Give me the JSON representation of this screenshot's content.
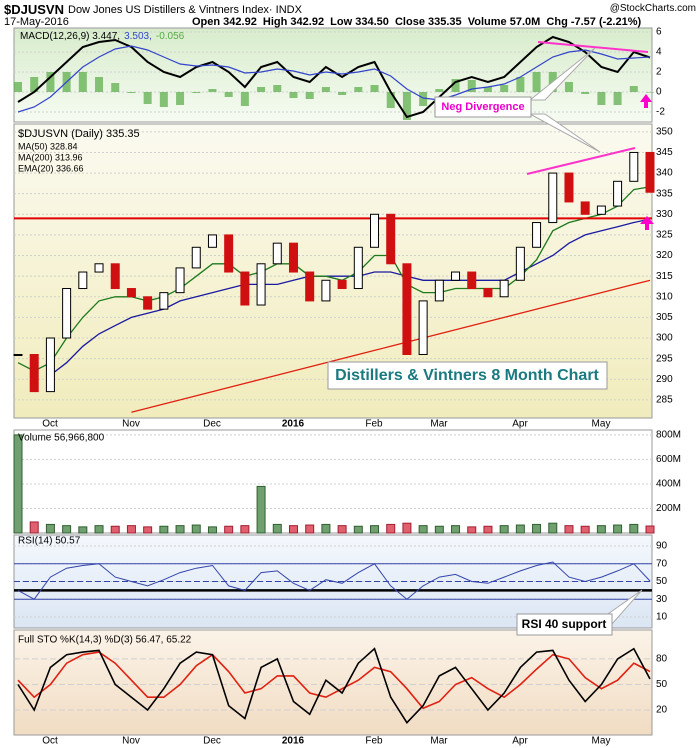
{
  "chart_data": {
    "type": "stock",
    "header": {
      "symbol": "$DJUSVN",
      "name": "Dow Jones US Distillers & Vintners Index· INDX",
      "source": "@StockCharts.com",
      "date": "17-May-2016",
      "quote": "Open 342.92  High 342.92  Low 334.50  Close 335.35  Volume 57.0M  Chg -7.57 (-2.21%)"
    },
    "x_labels": [
      "Oct",
      "Nov",
      "Dec",
      "2016",
      "Feb",
      "Mar",
      "Apr",
      "May"
    ],
    "macd": {
      "legend": [
        "MACD(12,26,9) 3.447,",
        "3.503,",
        "-0.056"
      ],
      "ylim": [
        -3,
        6.4
      ],
      "yticks": [
        6,
        4,
        2,
        0,
        -2
      ],
      "series": [
        {
          "name": "MACD",
          "color": "#000000",
          "values": [
            -1,
            0,
            1.5,
            3,
            4.5,
            5,
            5.2,
            4.5,
            3,
            2,
            1.5,
            2.5,
            3,
            2,
            0.5,
            2.5,
            3,
            1.5,
            1,
            2.5,
            1.5,
            2.5,
            3,
            0,
            -2.5,
            -2,
            -0.5,
            1,
            1.5,
            1,
            1.5,
            3,
            4.5,
            5.5,
            5,
            4,
            2.5,
            2,
            4,
            3.447
          ]
        },
        {
          "name": "Signal",
          "color": "#3344cc",
          "values": [
            -2,
            -1.5,
            -0.5,
            1,
            2.5,
            3.5,
            4.3,
            4.6,
            4.2,
            3.5,
            2.8,
            2.6,
            2.7,
            2.5,
            1.9,
            2,
            2.3,
            2.1,
            1.7,
            2,
            1.8,
            2,
            2.3,
            1.6,
            0.3,
            -0.6,
            -0.8,
            -0.3,
            0.3,
            0.5,
            0.8,
            1.5,
            2.5,
            3.5,
            4,
            4.2,
            3.8,
            3.3,
            3.4,
            3.503
          ]
        }
      ],
      "histogram": {
        "color": "#55aa44",
        "values": [
          1,
          1.5,
          2,
          2,
          2,
          1.5,
          0.9,
          -0.1,
          -1.2,
          -1.5,
          -1.3,
          -0.1,
          0.3,
          -0.5,
          -1.4,
          0.5,
          0.7,
          -0.6,
          -0.7,
          0.5,
          -0.3,
          0.5,
          0.7,
          -1.6,
          -2.8,
          -1.4,
          0.3,
          1.3,
          1.2,
          0.5,
          0.7,
          1.5,
          2,
          2,
          1,
          -0.2,
          -1.3,
          -1.3,
          0.6,
          -0.056
        ]
      }
    },
    "price": {
      "ylim": [
        280.6,
        351.9
      ],
      "yticks": [
        350,
        345,
        340,
        335,
        330,
        325,
        320,
        315,
        310,
        305,
        300,
        295,
        290,
        285
      ],
      "close": {
        "name": "$DJUSVN (Daily) 335.35",
        "values": [
          296,
          287,
          300,
          312,
          316,
          318,
          312,
          310,
          307,
          311,
          317,
          322,
          325,
          316,
          308,
          318,
          323,
          316,
          309,
          314,
          312,
          322,
          330,
          318,
          296,
          309,
          314,
          316,
          312,
          310,
          314,
          322,
          328,
          340,
          333,
          330,
          332,
          338,
          345,
          335.35
        ]
      },
      "series": [
        {
          "name": "MA(50) 328.84",
          "color": "#1a1aa0",
          "values": [
            null,
            null,
            291,
            294,
            298,
            301,
            303,
            305,
            306,
            307,
            309,
            310,
            311,
            312,
            313,
            313,
            313,
            314,
            315,
            315,
            315,
            315,
            316,
            316,
            315,
            314,
            314,
            314,
            314,
            314,
            314,
            316,
            318,
            320,
            323,
            325,
            326,
            327,
            328,
            328.84
          ]
        },
        {
          "name": "MA(200) 313.96",
          "color": "#e02010",
          "values": [
            null,
            null,
            null,
            null,
            null,
            null,
            null,
            282,
            283,
            284,
            285,
            286,
            287,
            288,
            289,
            290,
            291,
            292,
            293,
            294,
            295,
            296,
            297,
            298,
            299,
            300,
            301,
            302,
            303,
            304,
            305,
            306,
            307,
            308,
            309,
            310,
            311,
            312,
            313,
            313.96
          ]
        },
        {
          "name": "EMA(20) 336.66",
          "color": "#1c7a1c",
          "values": [
            294,
            292,
            294,
            300,
            305,
            309,
            310,
            310,
            309,
            310,
            312,
            315,
            318,
            318,
            315,
            316,
            318,
            318,
            315,
            315,
            314,
            316,
            320,
            320,
            313,
            311,
            311,
            312,
            312,
            312,
            312,
            315,
            319,
            326,
            328,
            329,
            330,
            332,
            336,
            336.66
          ]
        }
      ],
      "support_level": 329,
      "support_color": "#e00000"
    },
    "volume": {
      "legend": "Volume 56,966,800",
      "ylim": [
        0,
        840000000
      ],
      "yticks": [
        {
          "value": 800000000,
          "label": "800M"
        },
        {
          "value": 600000000,
          "label": "600M"
        },
        {
          "value": 400000000,
          "label": "400M"
        },
        {
          "value": 200000000,
          "label": "200M"
        }
      ],
      "values": [
        800000000,
        90000000,
        70000000,
        60000000,
        50000000,
        60000000,
        55000000,
        60000000,
        50000000,
        55000000,
        60000000,
        65000000,
        50000000,
        55000000,
        60000000,
        380000000,
        70000000,
        60000000,
        65000000,
        70000000,
        60000000,
        55000000,
        60000000,
        70000000,
        80000000,
        60000000,
        55000000,
        60000000,
        50000000,
        55000000,
        60000000,
        65000000,
        70000000,
        80000000,
        60000000,
        55000000,
        60000000,
        65000000,
        70000000,
        56966800
      ]
    },
    "rsi": {
      "legend": "RSI(14) 50.57",
      "ylim": [
        -2.4,
        102.4
      ],
      "yticks": [
        90,
        70,
        50,
        30,
        10
      ],
      "bands": [
        70,
        30
      ],
      "mid": 50,
      "support": 40,
      "color": "#3344aa",
      "values": [
        40,
        30,
        55,
        65,
        68,
        70,
        55,
        50,
        45,
        52,
        60,
        65,
        68,
        45,
        40,
        60,
        62,
        48,
        40,
        52,
        48,
        60,
        70,
        45,
        30,
        45,
        55,
        58,
        50,
        48,
        55,
        62,
        68,
        72,
        55,
        50,
        55,
        62,
        70,
        50.57
      ]
    },
    "sto": {
      "legend": "Full STO %K(14,3) %D(3) 56.47, 65.22",
      "ylim": [
        -9.4,
        114
      ],
      "yticks": [
        80,
        50,
        20
      ],
      "series": [
        {
          "name": "%K",
          "color": "#000000",
          "values": [
            50,
            20,
            70,
            85,
            88,
            90,
            50,
            35,
            20,
            45,
            75,
            88,
            85,
            25,
            10,
            70,
            80,
            30,
            15,
            55,
            40,
            75,
            92,
            35,
            5,
            25,
            60,
            70,
            45,
            20,
            40,
            70,
            88,
            90,
            55,
            30,
            50,
            80,
            92,
            56.47
          ]
        },
        {
          "name": "%D",
          "color": "#e02010",
          "values": [
            55,
            35,
            50,
            75,
            85,
            88,
            75,
            55,
            35,
            35,
            50,
            72,
            85,
            65,
            40,
            45,
            60,
            60,
            40,
            35,
            45,
            55,
            70,
            65,
            45,
            22,
            30,
            50,
            58,
            45,
            35,
            50,
            68,
            85,
            80,
            58,
            45,
            55,
            75,
            65.22
          ]
        }
      ]
    },
    "annotations": {
      "divergence": "Neg Divergence",
      "chart_label": "Distillers & Vintners 8 Month Chart",
      "rsi_note": "RSI 40 support"
    }
  }
}
